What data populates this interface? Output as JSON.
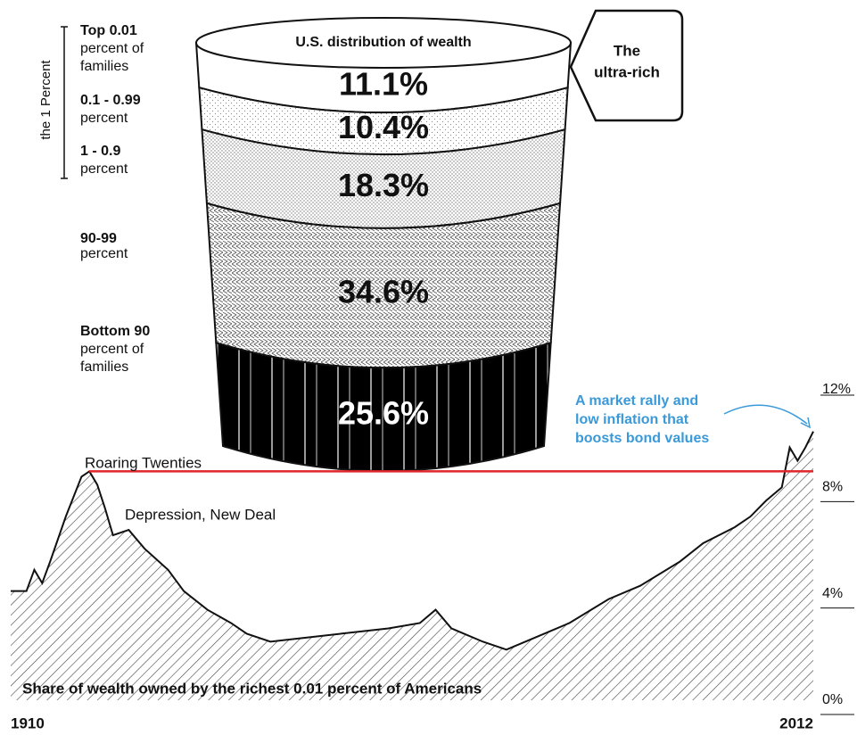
{
  "chart_data": [
    {
      "type": "cup",
      "title": "U.S. distribution of wealth",
      "categories": [
        [
          "Top 0.01",
          "percent of",
          "families"
        ],
        [
          "0.1 - 0.99",
          "percent"
        ],
        [
          "1 - 0.9",
          "percent"
        ],
        [
          "90-99",
          "percent"
        ],
        [
          "Bottom 90",
          "percent of",
          "families"
        ]
      ],
      "values": [
        11.1,
        10.4,
        18.3,
        34.6,
        25.6
      ],
      "value_labels": [
        "11.1%",
        "10.4%",
        "18.3%",
        "34.6%",
        "25.6%"
      ],
      "bracket_label": "the 1 Percent",
      "callout": [
        "The",
        "ultra-rich"
      ]
    },
    {
      "type": "area",
      "title": "Share of wealth owned by the richest 0.01 percent of Americans",
      "x": [
        1910,
        1912,
        1913,
        1914,
        1915,
        1917,
        1919,
        1920,
        1921,
        1922,
        1923,
        1925,
        1927,
        1930,
        1932,
        1935,
        1938,
        1940,
        1943,
        1946,
        1952,
        1958,
        1962,
        1964,
        1966,
        1970,
        1973,
        1977,
        1981,
        1986,
        1990,
        1995,
        1998,
        2002,
        2004,
        2006,
        2008,
        2009,
        2010,
        2011,
        2012
      ],
      "values": [
        4.1,
        4.1,
        4.9,
        4.4,
        5.2,
        6.9,
        8.4,
        8.6,
        8.1,
        7.2,
        6.2,
        6.4,
        5.7,
        4.9,
        4.1,
        3.4,
        2.9,
        2.5,
        2.2,
        2.3,
        2.5,
        2.7,
        2.9,
        3.4,
        2.7,
        2.2,
        1.9,
        2.4,
        2.9,
        3.8,
        4.3,
        5.2,
        5.9,
        6.5,
        6.9,
        7.5,
        8.0,
        9.5,
        9.0,
        9.5,
        10.1
      ],
      "color": "#111111",
      "xlim": [
        1910,
        2012
      ],
      "xticks": [
        1910,
        2012
      ],
      "ylim": [
        0,
        12
      ],
      "yticks": [
        {
          "value": 0,
          "label": "0%"
        },
        {
          "value": 4,
          "label": "4%"
        },
        {
          "value": 8,
          "label": "8%"
        },
        {
          "value": 12,
          "label": "12%"
        }
      ],
      "reference_line": {
        "value": 8.6,
        "color": "#e0262a"
      },
      "annotations": [
        "Roaring Twenties",
        "Depression, New Deal"
      ],
      "highlight_note": {
        "lines": [
          "A market rally and",
          "low inflation that",
          "boosts bond values"
        ],
        "color": "#3a9ad9"
      }
    }
  ]
}
